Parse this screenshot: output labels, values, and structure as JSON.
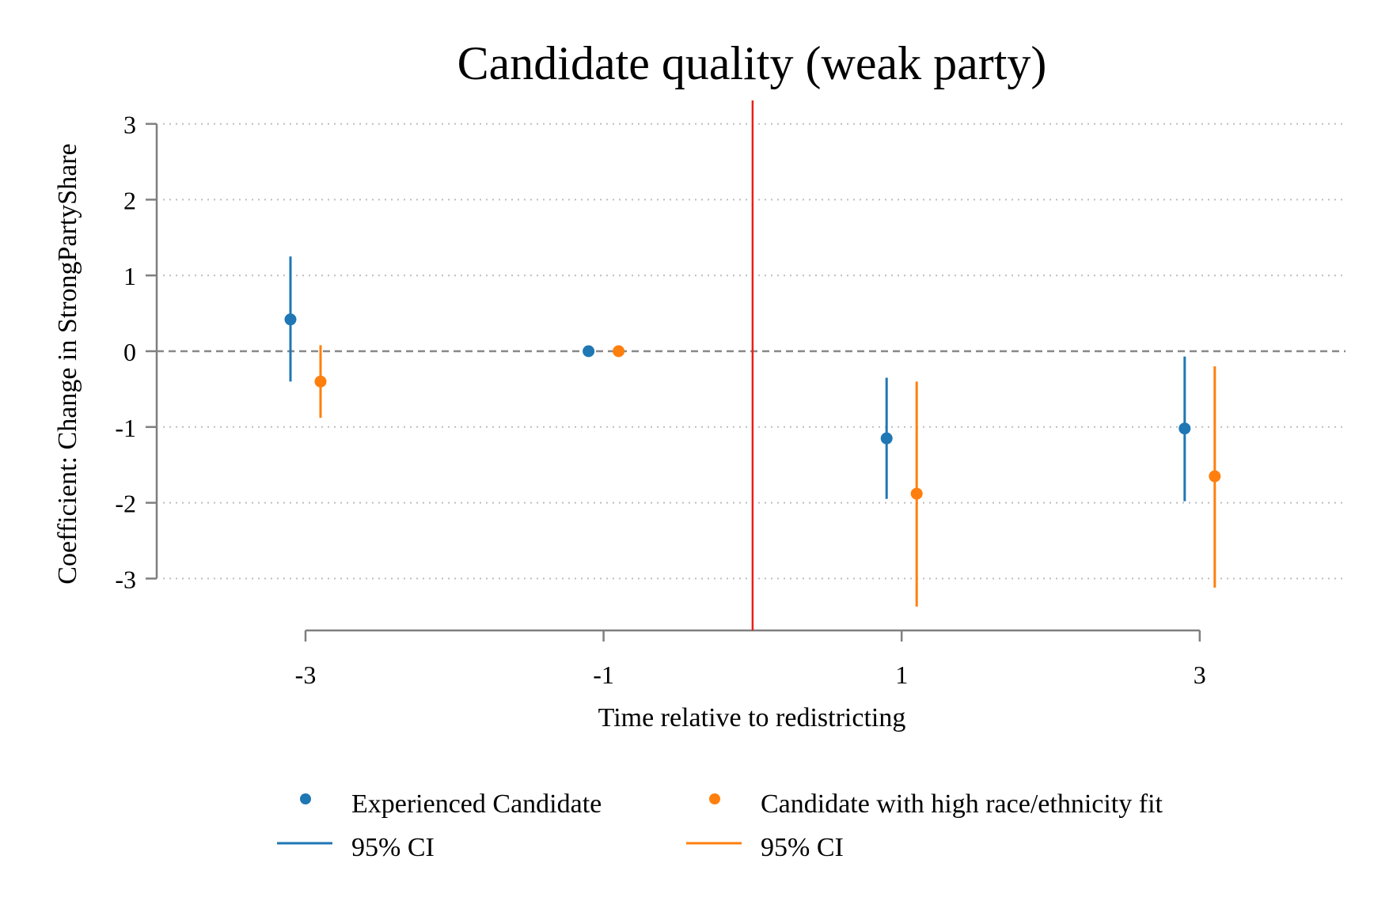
{
  "chart_data": {
    "type": "scatter",
    "title": "Candidate quality (weak party)",
    "xlabel": "Time relative to redistricting",
    "ylabel": "Coefficient: Change in StrongPartyShare",
    "xlim": [
      -4,
      4
    ],
    "ylim": [
      -3.4,
      3.3
    ],
    "x_ticks": [
      -3,
      -1,
      1,
      3
    ],
    "x_tick_labels": [
      "-3",
      "-1",
      "1",
      "3"
    ],
    "y_ticks": [
      3,
      2,
      1,
      0,
      -1,
      -2,
      -3
    ],
    "y_tick_labels": [
      "3",
      "2",
      "1",
      "0",
      "-1",
      "-2",
      "-3"
    ],
    "grid": "horizontal dotted",
    "reference_lines": {
      "horizontal_dashed_y": 0,
      "vertical_red_x": 0
    },
    "legend_position": "bottom",
    "series": [
      {
        "name": "Experienced Candidate",
        "ci_label": "95% CI",
        "color": "#1f77b4",
        "x": [
          -3,
          -1,
          1,
          3
        ],
        "y": [
          0.42,
          0.0,
          -1.15,
          -1.02
        ],
        "ci_low": [
          -0.4,
          0.0,
          -1.95,
          -1.98
        ],
        "ci_high": [
          1.25,
          0.0,
          -0.35,
          -0.07
        ]
      },
      {
        "name": "Candidate with high race/ethnicity fit",
        "ci_label": "95% CI",
        "color": "#ff7f0e",
        "x": [
          -3,
          -1,
          1,
          3
        ],
        "y": [
          -0.4,
          0.0,
          -1.88,
          -1.65
        ],
        "ci_low": [
          -0.88,
          0.0,
          -3.37,
          -3.12
        ],
        "ci_high": [
          0.08,
          0.0,
          -0.4,
          -0.2
        ]
      }
    ],
    "colors": {
      "reference_vertical": "#e8201a",
      "zero_line": "#888888",
      "grid": "#bdbdbd",
      "axis": "#7f7f7f"
    }
  }
}
